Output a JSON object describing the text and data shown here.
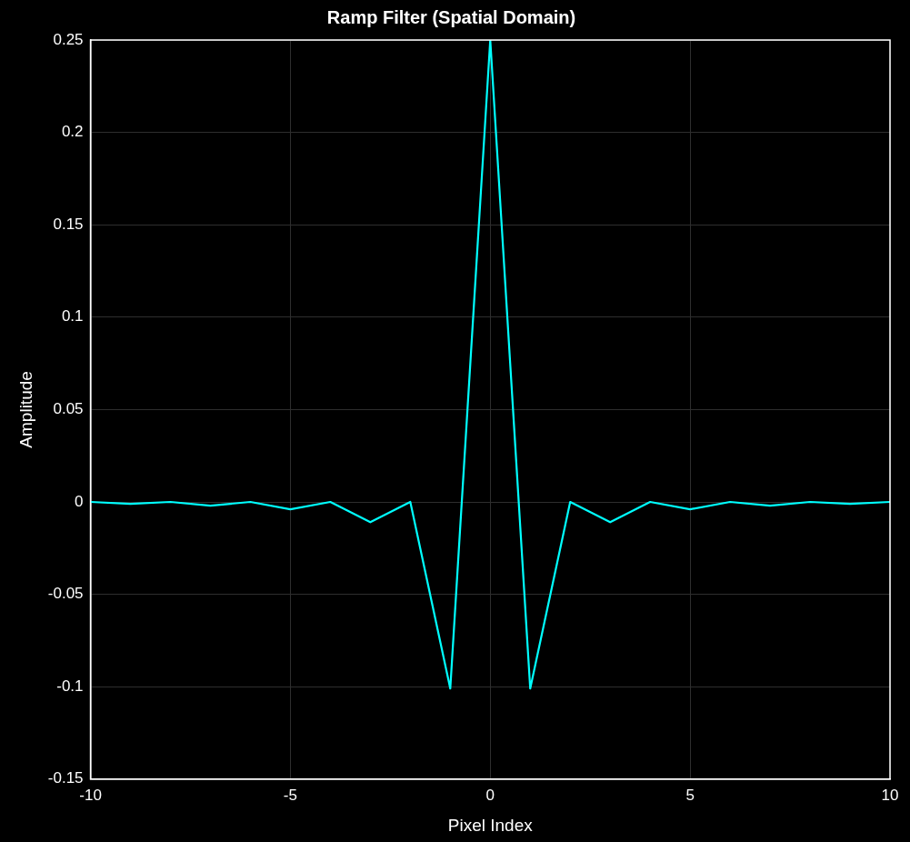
{
  "chart_data": {
    "type": "line",
    "title": "Ramp Filter (Spatial Domain)",
    "xlabel": "Pixel Index",
    "ylabel": "Amplitude",
    "x": [
      -10,
      -9,
      -8,
      -7,
      -6,
      -5,
      -4,
      -3,
      -2,
      -1,
      0,
      1,
      2,
      3,
      4,
      5,
      6,
      7,
      8,
      9,
      10
    ],
    "series": [
      {
        "color": "#00ffff",
        "values": [
          0,
          -0.001,
          0,
          -0.002,
          0,
          -0.004,
          0,
          -0.011,
          0,
          -0.101,
          0.25,
          -0.101,
          0,
          -0.011,
          0,
          -0.004,
          0,
          -0.002,
          0,
          -0.001,
          0
        ]
      }
    ],
    "xlim": [
      -10,
      10
    ],
    "xticks": [
      -10,
      -5,
      0,
      5,
      10
    ],
    "ylim": [
      -0.15,
      0.25
    ],
    "yticks": [
      -0.15,
      -0.1,
      -0.05,
      0,
      0.05,
      0.1,
      0.15,
      0.2,
      0.25
    ],
    "grid": true,
    "legend": false,
    "marker": "none",
    "line_style": "solid"
  }
}
